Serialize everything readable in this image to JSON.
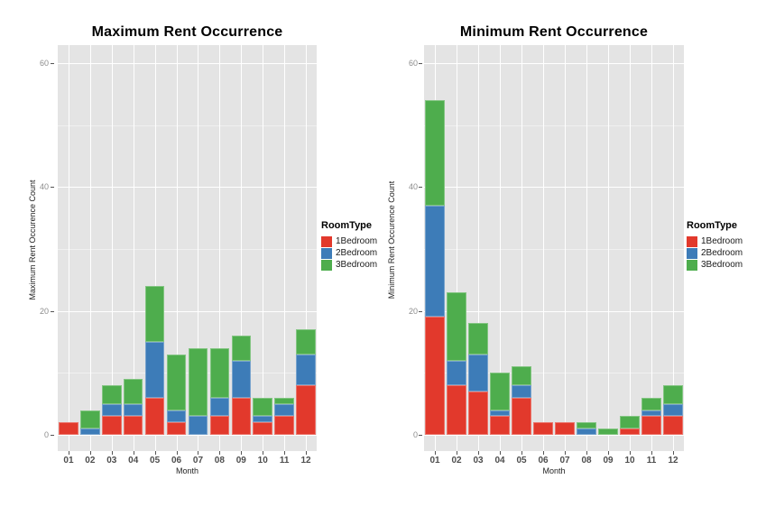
{
  "page": {
    "background": "#FFFFFF",
    "panel_background": "#E4E4E4",
    "grid_major_color": "#FFFFFF",
    "grid_minor_color": "#F0F0F0"
  },
  "chart_data": [
    {
      "type": "bar",
      "stacked": true,
      "title": "Maximum Rent Occurrence",
      "xlabel": "Month",
      "ylabel": "Maximum Rent Occurence Count",
      "legend_title": "RoomType",
      "legend_position": "right",
      "grid": true,
      "categories": [
        "01",
        "02",
        "03",
        "04",
        "05",
        "06",
        "07",
        "08",
        "09",
        "10",
        "11",
        "12"
      ],
      "yticks": [
        0,
        20,
        40,
        60
      ],
      "yticks_minor": [
        10,
        30,
        50
      ],
      "ylim": [
        0,
        63
      ],
      "series": [
        {
          "name": "1Bedroom",
          "color": "#E2392C",
          "values": [
            2,
            0,
            3,
            3,
            6,
            2,
            0,
            3,
            6,
            2,
            3,
            8
          ]
        },
        {
          "name": "2Bedroom",
          "color": "#3D7CB8",
          "values": [
            0,
            1,
            2,
            2,
            9,
            2,
            3,
            3,
            6,
            1,
            2,
            5
          ]
        },
        {
          "name": "3Bedroom",
          "color": "#4EAD4D",
          "values": [
            0,
            3,
            3,
            4,
            9,
            9,
            11,
            8,
            4,
            3,
            1,
            4
          ]
        }
      ]
    },
    {
      "type": "bar",
      "stacked": true,
      "title": "Minimum Rent Occurrence",
      "xlabel": "Month",
      "ylabel": "Minimum Rent Occurence Count",
      "legend_title": "RoomType",
      "legend_position": "right",
      "grid": true,
      "categories": [
        "01",
        "02",
        "03",
        "04",
        "05",
        "06",
        "07",
        "08",
        "09",
        "10",
        "11",
        "12"
      ],
      "yticks": [
        0,
        20,
        40,
        60
      ],
      "yticks_minor": [
        10,
        30,
        50
      ],
      "ylim": [
        0,
        63
      ],
      "series": [
        {
          "name": "1Bedroom",
          "color": "#E2392C",
          "values": [
            19,
            8,
            7,
            3,
            6,
            2,
            2,
            0,
            0,
            1,
            3,
            3
          ]
        },
        {
          "name": "2Bedroom",
          "color": "#3D7CB8",
          "values": [
            18,
            4,
            6,
            1,
            2,
            0,
            0,
            1,
            0,
            0,
            1,
            2
          ]
        },
        {
          "name": "3Bedroom",
          "color": "#4EAD4D",
          "values": [
            17,
            11,
            5,
            6,
            3,
            0,
            0,
            1,
            1,
            2,
            2,
            3
          ]
        }
      ]
    }
  ]
}
